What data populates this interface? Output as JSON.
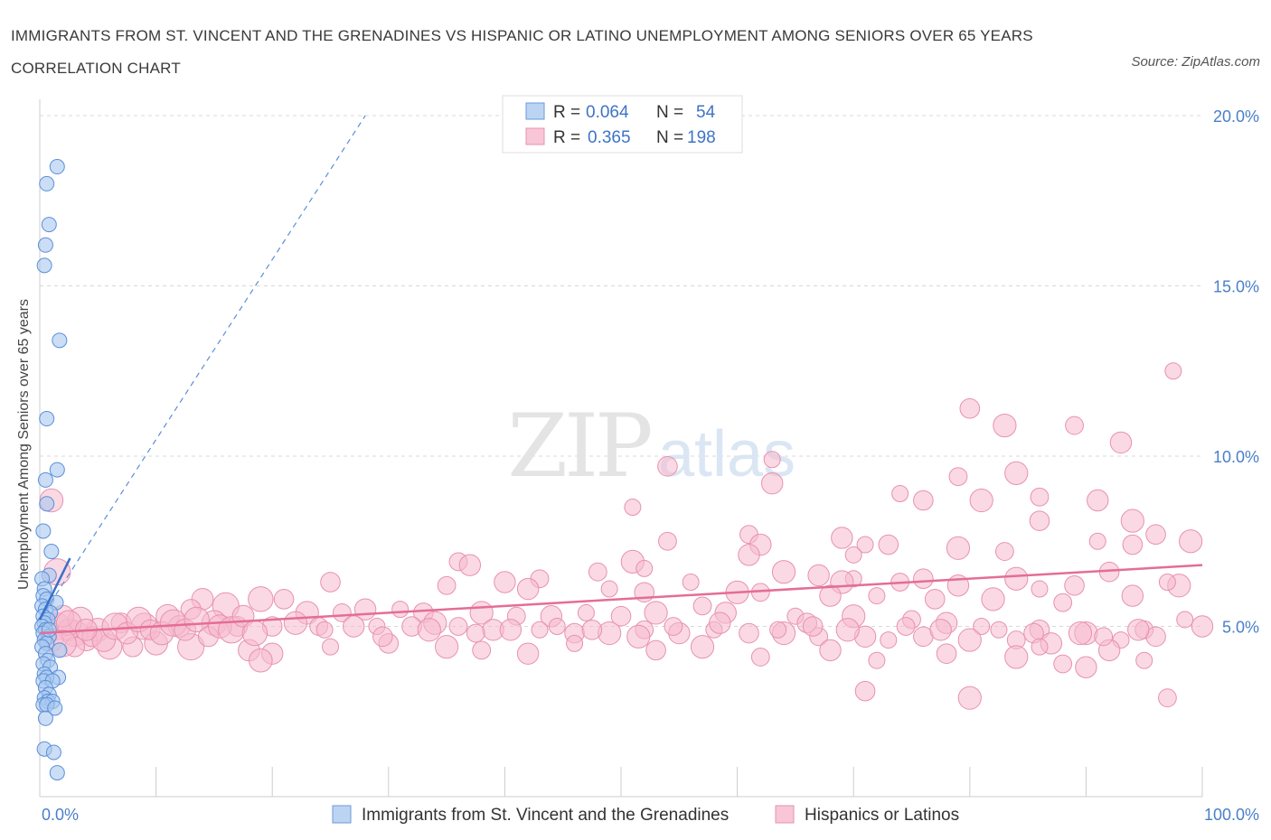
{
  "title": "IMMIGRANTS FROM ST. VINCENT AND THE GRENADINES VS HISPANIC OR LATINO UNEMPLOYMENT AMONG SENIORS OVER 65 YEARS CORRELATION CHART",
  "source": "Source: ZipAtlas.com",
  "watermark": {
    "zip": "ZIP",
    "atlas": "atlas"
  },
  "colors": {
    "blue_fill": "#a9c8f0",
    "blue_stroke": "#5a8fd8",
    "blue_line": "#3a6fc9",
    "pink_fill": "#f6b9cd",
    "pink_stroke": "#e891ae",
    "pink_line": "#e46d97",
    "tick_label": "#4a7fc9",
    "grid": "#d8d8d8"
  },
  "legend": {
    "r_label": "R =",
    "n_label": "N =",
    "rows": [
      {
        "r": "0.064",
        "n": "54"
      },
      {
        "r": "0.365",
        "n": "198"
      }
    ]
  },
  "chart_data": {
    "type": "scatter",
    "xlabel": "",
    "ylabel": "Unemployment Among Seniors over 65 years",
    "xlim": [
      0,
      100
    ],
    "ylim": [
      0,
      20
    ],
    "x_tick_labels": [
      "0.0%",
      "100.0%"
    ],
    "y_ticks": [
      5,
      10,
      15,
      20
    ],
    "y_tick_labels": [
      "5.0%",
      "10.0%",
      "15.0%",
      "20.0%"
    ],
    "grid": "horizontal dashed",
    "legend_position": "top-center",
    "series": [
      {
        "name": "Immigrants from St. Vincent and the Grenadines",
        "color": "#a9c8f0",
        "trend": {
          "x": [
            0,
            2.6
          ],
          "y": [
            5.2,
            7.0
          ]
        },
        "trend_extended": {
          "x": [
            0,
            28
          ],
          "y": [
            5.2,
            20.0
          ]
        },
        "points": [
          [
            1.5,
            18.5
          ],
          [
            0.6,
            18.0
          ],
          [
            0.8,
            16.8
          ],
          [
            0.5,
            16.2
          ],
          [
            0.4,
            15.6
          ],
          [
            1.7,
            13.4
          ],
          [
            0.6,
            11.1
          ],
          [
            1.5,
            9.6
          ],
          [
            0.5,
            9.3
          ],
          [
            0.6,
            8.6
          ],
          [
            0.3,
            7.8
          ],
          [
            1.0,
            7.2
          ],
          [
            0.8,
            6.5
          ],
          [
            0.2,
            6.4
          ],
          [
            0.4,
            6.1
          ],
          [
            0.3,
            5.9
          ],
          [
            0.6,
            5.8
          ],
          [
            1.4,
            5.7
          ],
          [
            0.2,
            5.6
          ],
          [
            0.5,
            5.5
          ],
          [
            0.9,
            5.4
          ],
          [
            0.3,
            5.3
          ],
          [
            0.7,
            5.2
          ],
          [
            0.4,
            5.1
          ],
          [
            0.2,
            5.0
          ],
          [
            0.5,
            4.9
          ],
          [
            0.3,
            4.8
          ],
          [
            0.8,
            4.7
          ],
          [
            0.4,
            4.6
          ],
          [
            0.6,
            4.5
          ],
          [
            0.2,
            4.4
          ],
          [
            1.7,
            4.3
          ],
          [
            0.5,
            4.2
          ],
          [
            0.7,
            4.0
          ],
          [
            0.3,
            3.9
          ],
          [
            0.9,
            3.8
          ],
          [
            0.4,
            3.6
          ],
          [
            1.6,
            3.5
          ],
          [
            0.6,
            3.5
          ],
          [
            0.3,
            3.4
          ],
          [
            1.1,
            3.4
          ],
          [
            0.5,
            3.2
          ],
          [
            0.8,
            3.0
          ],
          [
            0.4,
            2.9
          ],
          [
            0.7,
            2.8
          ],
          [
            1.1,
            2.8
          ],
          [
            0.3,
            2.7
          ],
          [
            0.6,
            2.7
          ],
          [
            1.3,
            2.6
          ],
          [
            0.5,
            2.3
          ],
          [
            0.4,
            1.4
          ],
          [
            1.2,
            1.3
          ],
          [
            1.5,
            0.7
          ],
          [
            0.8,
            4.9
          ]
        ]
      },
      {
        "name": "Hispanics or Latinos",
        "color": "#f6b9cd",
        "trend": {
          "x": [
            0,
            100
          ],
          "y": [
            4.8,
            6.8
          ]
        },
        "points": [
          [
            97.5,
            12.5
          ],
          [
            80.0,
            11.4
          ],
          [
            83.0,
            10.9
          ],
          [
            89.0,
            10.9
          ],
          [
            93.0,
            10.4
          ],
          [
            63.0,
            9.9
          ],
          [
            54.0,
            9.7
          ],
          [
            84.0,
            9.5
          ],
          [
            79.0,
            9.4
          ],
          [
            63.0,
            9.2
          ],
          [
            74.0,
            8.9
          ],
          [
            76.0,
            8.7
          ],
          [
            81.0,
            8.7
          ],
          [
            86.0,
            8.8
          ],
          [
            91.0,
            8.7
          ],
          [
            51.0,
            8.5
          ],
          [
            86.0,
            8.1
          ],
          [
            94.0,
            8.1
          ],
          [
            61.0,
            7.7
          ],
          [
            69.0,
            7.6
          ],
          [
            91.0,
            7.5
          ],
          [
            96.0,
            7.7
          ],
          [
            99.0,
            7.5
          ],
          [
            54.0,
            7.5
          ],
          [
            62.0,
            7.4
          ],
          [
            71.0,
            7.4
          ],
          [
            73.0,
            7.4
          ],
          [
            79.0,
            7.3
          ],
          [
            83.0,
            7.2
          ],
          [
            61.0,
            7.1
          ],
          [
            70.0,
            7.1
          ],
          [
            94.0,
            7.4
          ],
          [
            51.0,
            6.9
          ],
          [
            36.0,
            6.9
          ],
          [
            37.0,
            6.8
          ],
          [
            52.0,
            6.7
          ],
          [
            92.0,
            6.6
          ],
          [
            64.0,
            6.6
          ],
          [
            48.0,
            6.6
          ],
          [
            67.0,
            6.5
          ],
          [
            70.0,
            6.4
          ],
          [
            76.0,
            6.4
          ],
          [
            84.0,
            6.4
          ],
          [
            43.0,
            6.4
          ],
          [
            40.0,
            6.3
          ],
          [
            56.0,
            6.3
          ],
          [
            25.0,
            6.3
          ],
          [
            69.0,
            6.3
          ],
          [
            74.0,
            6.3
          ],
          [
            79.0,
            6.2
          ],
          [
            86.0,
            6.1
          ],
          [
            89.0,
            6.2
          ],
          [
            98.0,
            6.2
          ],
          [
            35.0,
            6.2
          ],
          [
            42.0,
            6.1
          ],
          [
            49.0,
            6.1
          ],
          [
            52.0,
            6.0
          ],
          [
            60.0,
            6.0
          ],
          [
            62.0,
            6.0
          ],
          [
            68.0,
            5.9
          ],
          [
            72.0,
            5.9
          ],
          [
            77.0,
            5.8
          ],
          [
            82.0,
            5.8
          ],
          [
            88.0,
            5.7
          ],
          [
            94.0,
            5.9
          ],
          [
            97.0,
            6.3
          ],
          [
            21.0,
            5.8
          ],
          [
            16.0,
            5.6
          ],
          [
            14.0,
            5.8
          ],
          [
            19.0,
            5.8
          ],
          [
            13.0,
            5.5
          ],
          [
            11.0,
            5.3
          ],
          [
            23.0,
            5.4
          ],
          [
            26.0,
            5.4
          ],
          [
            28.0,
            5.5
          ],
          [
            31.0,
            5.5
          ],
          [
            33.0,
            5.4
          ],
          [
            38.0,
            5.4
          ],
          [
            41.0,
            5.3
          ],
          [
            44.0,
            5.3
          ],
          [
            47.0,
            5.4
          ],
          [
            50.0,
            5.3
          ],
          [
            53.0,
            5.4
          ],
          [
            57.0,
            5.6
          ],
          [
            59.0,
            5.4
          ],
          [
            65.0,
            5.3
          ],
          [
            66.0,
            5.1
          ],
          [
            70.0,
            5.3
          ],
          [
            75.0,
            5.2
          ],
          [
            78.0,
            5.1
          ],
          [
            81.0,
            5.0
          ],
          [
            86.0,
            4.9
          ],
          [
            90.0,
            4.8
          ],
          [
            95.0,
            4.9
          ],
          [
            100.0,
            5.0
          ],
          [
            7.0,
            5.1
          ],
          [
            5.0,
            4.9
          ],
          [
            9.0,
            5.0
          ],
          [
            12.0,
            5.0
          ],
          [
            15.0,
            5.1
          ],
          [
            17.0,
            5.0
          ],
          [
            20.0,
            5.0
          ],
          [
            22.0,
            5.1
          ],
          [
            24.0,
            5.0
          ],
          [
            27.0,
            5.0
          ],
          [
            29.0,
            5.0
          ],
          [
            32.0,
            5.0
          ],
          [
            34.0,
            5.1
          ],
          [
            36.0,
            5.0
          ],
          [
            39.0,
            4.9
          ],
          [
            43.0,
            4.9
          ],
          [
            46.0,
            4.8
          ],
          [
            49.0,
            4.8
          ],
          [
            52.0,
            4.9
          ],
          [
            55.0,
            4.8
          ],
          [
            58.0,
            4.9
          ],
          [
            61.0,
            4.8
          ],
          [
            64.0,
            4.8
          ],
          [
            67.0,
            4.7
          ],
          [
            71.0,
            4.7
          ],
          [
            73.0,
            4.6
          ],
          [
            76.0,
            4.7
          ],
          [
            80.0,
            4.6
          ],
          [
            84.0,
            4.6
          ],
          [
            87.0,
            4.5
          ],
          [
            93.0,
            4.6
          ],
          [
            96.0,
            4.7
          ],
          [
            3.0,
            4.8
          ],
          [
            4.0,
            4.6
          ],
          [
            6.0,
            4.4
          ],
          [
            8.0,
            4.4
          ],
          [
            10.0,
            4.5
          ],
          [
            13.0,
            4.4
          ],
          [
            18.0,
            4.3
          ],
          [
            20.0,
            4.2
          ],
          [
            25.0,
            4.4
          ],
          [
            30.0,
            4.5
          ],
          [
            35.0,
            4.4
          ],
          [
            38.0,
            4.3
          ],
          [
            42.0,
            4.2
          ],
          [
            46.0,
            4.5
          ],
          [
            53.0,
            4.3
          ],
          [
            57.0,
            4.4
          ],
          [
            62.0,
            4.1
          ],
          [
            68.0,
            4.3
          ],
          [
            72.0,
            4.0
          ],
          [
            78.0,
            4.2
          ],
          [
            84.0,
            4.1
          ],
          [
            88.0,
            3.9
          ],
          [
            92.0,
            4.3
          ],
          [
            95.0,
            4.0
          ],
          [
            19.0,
            4.0
          ],
          [
            1.5,
            5.0
          ],
          [
            2.5,
            4.9
          ],
          [
            3.5,
            5.2
          ],
          [
            4.5,
            4.7
          ],
          [
            5.5,
            4.6
          ],
          [
            6.5,
            5.0
          ],
          [
            7.5,
            4.8
          ],
          [
            8.5,
            5.2
          ],
          [
            9.5,
            4.9
          ],
          [
            10.5,
            4.8
          ],
          [
            11.5,
            5.1
          ],
          [
            12.5,
            4.9
          ],
          [
            13.5,
            5.2
          ],
          [
            14.5,
            4.7
          ],
          [
            15.5,
            5.0
          ],
          [
            16.5,
            4.9
          ],
          [
            17.5,
            5.3
          ],
          [
            18.5,
            4.8
          ],
          [
            24.5,
            4.9
          ],
          [
            29.5,
            4.7
          ],
          [
            33.5,
            4.9
          ],
          [
            37.5,
            4.8
          ],
          [
            40.5,
            4.9
          ],
          [
            44.5,
            5.0
          ],
          [
            47.5,
            4.9
          ],
          [
            51.5,
            4.7
          ],
          [
            54.5,
            5.0
          ],
          [
            58.5,
            5.1
          ],
          [
            63.5,
            4.9
          ],
          [
            66.5,
            5.0
          ],
          [
            69.5,
            4.9
          ],
          [
            74.5,
            5.0
          ],
          [
            77.5,
            4.9
          ],
          [
            82.5,
            4.9
          ],
          [
            85.5,
            4.8
          ],
          [
            89.5,
            4.8
          ],
          [
            91.5,
            4.7
          ],
          [
            94.5,
            4.9
          ],
          [
            98.5,
            5.2
          ],
          [
            71.0,
            3.1
          ],
          [
            80.0,
            2.9
          ],
          [
            97.0,
            2.9
          ],
          [
            90.0,
            3.8
          ],
          [
            86.0,
            4.4
          ],
          [
            1.0,
            8.7
          ],
          [
            1.5,
            6.6
          ],
          [
            2.0,
            5.3
          ],
          [
            2.5,
            5.1
          ],
          [
            3.0,
            4.4
          ],
          [
            1.0,
            4.6
          ],
          [
            2.0,
            4.5
          ],
          [
            4.0,
            4.9
          ]
        ]
      }
    ]
  }
}
